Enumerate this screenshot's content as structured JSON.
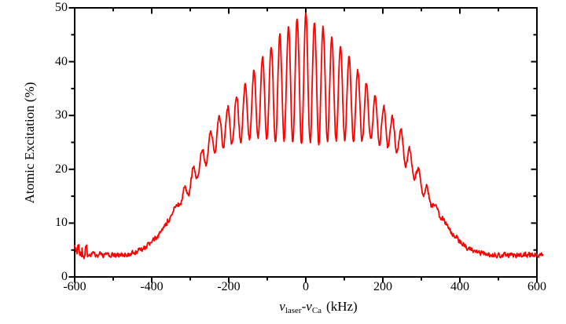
{
  "figure": {
    "background": "#ffffff",
    "ylabel": "Atomic Excitation (%)",
    "xlabel_parts": {
      "nu1": "ν",
      "sub1": "laser",
      "dash": "-",
      "nu2": "ν",
      "sub2": "Ca",
      "units": "(kHz)"
    }
  },
  "chart_data": {
    "type": "line",
    "title": "",
    "xlabel": "ν_laser − ν_Ca (kHz)",
    "ylabel": "Atomic Excitation (%)",
    "xlim": [
      -600,
      600
    ],
    "ylim": [
      0,
      50
    ],
    "grid": false,
    "legend": "none",
    "frame": "full box, ticks out on left/bottom, ticks in on top/right",
    "axis_color": "#000000",
    "line_color": "#ff0000",
    "x_major_ticks": [
      -600,
      -400,
      -200,
      0,
      200,
      400,
      600
    ],
    "x_minor_ticks": [
      -500,
      -300,
      -100,
      100,
      300,
      500
    ],
    "y_major_ticks": [
      0,
      10,
      20,
      30,
      40,
      50
    ],
    "y_minor_ticks": [
      5,
      15,
      25,
      35,
      45
    ],
    "x_tick_labels": [
      "-600",
      "-400",
      "-200",
      "0",
      "200",
      "400",
      "600"
    ],
    "y_tick_labels": [
      "0",
      "10",
      "20",
      "30",
      "40",
      "50"
    ],
    "series": [
      {
        "name": "atomic-excitation-signal",
        "description": "Doppler pedestal with Ramsey-Borde interference fringes; noisy red trace",
        "x_step_khz": 1.2,
        "x_start": -600,
        "x_end": 616,
        "fringe_period_khz": 22.5,
        "fringe_phase_khz": 0,
        "noise_pct": 0.55,
        "start_blob": {
          "x_below": -565,
          "noise_pct": 1.4
        },
        "midline_points": [
          [
            -616,
            5.4
          ],
          [
            -600,
            5.3
          ],
          [
            -580,
            4.6
          ],
          [
            -560,
            4.3
          ],
          [
            -540,
            4.15
          ],
          [
            -520,
            4.05
          ],
          [
            -500,
            4.0
          ],
          [
            -480,
            4.1
          ],
          [
            -460,
            4.25
          ],
          [
            -440,
            4.7
          ],
          [
            -420,
            5.4
          ],
          [
            -400,
            6.4
          ],
          [
            -380,
            7.9
          ],
          [
            -360,
            9.9
          ],
          [
            -340,
            12.6
          ],
          [
            -310,
            16.0
          ],
          [
            -280,
            20.2
          ],
          [
            -250,
            24.5
          ],
          [
            -220,
            27.2
          ],
          [
            -190,
            28.6
          ],
          [
            -160,
            30.4
          ],
          [
            -130,
            32.3
          ],
          [
            -100,
            33.8
          ],
          [
            -70,
            34.9
          ],
          [
            -40,
            35.9
          ],
          [
            -10,
            36.6
          ],
          [
            0,
            36.7
          ],
          [
            10,
            36.6
          ],
          [
            40,
            35.9
          ],
          [
            70,
            34.9
          ],
          [
            100,
            33.8
          ],
          [
            130,
            32.3
          ],
          [
            160,
            30.4
          ],
          [
            190,
            28.6
          ],
          [
            220,
            27.2
          ],
          [
            250,
            24.5
          ],
          [
            280,
            20.2
          ],
          [
            310,
            16.0
          ],
          [
            340,
            12.6
          ],
          [
            360,
            10.2
          ],
          [
            380,
            8.2
          ],
          [
            400,
            6.6
          ],
          [
            420,
            5.4
          ],
          [
            440,
            4.7
          ],
          [
            460,
            4.3
          ],
          [
            480,
            4.15
          ],
          [
            500,
            4.05
          ],
          [
            520,
            4.0
          ],
          [
            540,
            4.0
          ],
          [
            560,
            4.05
          ],
          [
            580,
            4.1
          ],
          [
            600,
            4.2
          ],
          [
            616,
            4.3
          ]
        ],
        "fringe_half_amplitude_points": [
          [
            -616,
            0
          ],
          [
            -370,
            0
          ],
          [
            -340,
            0.5
          ],
          [
            -310,
            1.5
          ],
          [
            -280,
            1.8
          ],
          [
            -250,
            2.5
          ],
          [
            -220,
            3.2
          ],
          [
            -190,
            3.9
          ],
          [
            -160,
            5.1
          ],
          [
            -130,
            6.7
          ],
          [
            -100,
            8.2
          ],
          [
            -70,
            9.6
          ],
          [
            -40,
            10.9
          ],
          [
            -10,
            11.8
          ],
          [
            0,
            12.0
          ],
          [
            10,
            11.8
          ],
          [
            40,
            10.9
          ],
          [
            70,
            9.6
          ],
          [
            100,
            8.2
          ],
          [
            130,
            6.7
          ],
          [
            160,
            5.1
          ],
          [
            190,
            3.9
          ],
          [
            220,
            3.2
          ],
          [
            250,
            2.5
          ],
          [
            280,
            1.8
          ],
          [
            310,
            1.5
          ],
          [
            340,
            0.5
          ],
          [
            370,
            0
          ],
          [
            616,
            0
          ]
        ]
      }
    ]
  }
}
